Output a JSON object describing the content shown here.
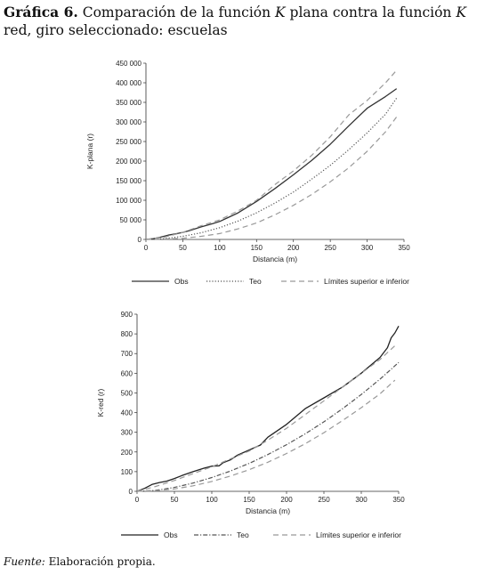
{
  "header": {
    "label": "Gráfica 6.",
    "text_a": " Comparación de la función ",
    "k1": "K",
    "text_b": " plana contra la función ",
    "k2": "K",
    "text_c": " red, giro seleccionado: escuelas"
  },
  "source": {
    "label": "Fuente:",
    "text": " Elaboración propia."
  },
  "chart_data": [
    {
      "type": "line",
      "xlabel": "Distancia (m)",
      "ylabel": "K-plana (r)",
      "xlim": [
        0,
        350
      ],
      "ylim": [
        0,
        450000
      ],
      "xticks": [
        0,
        50,
        100,
        150,
        200,
        250,
        300,
        350
      ],
      "yticks": [
        0,
        50000,
        100000,
        150000,
        200000,
        250000,
        300000,
        350000,
        400000,
        450000
      ],
      "ytick_labels": [
        "0",
        "50 000",
        "100 000",
        "150 000",
        "200 000",
        "250 000",
        "300 000",
        "350 000",
        "400 000",
        "450 000"
      ],
      "legend": [
        "Obs",
        "Teo",
        "Límites superior e inferior"
      ],
      "legend_position": "bottom",
      "series": [
        {
          "name": "Obs",
          "style": "solid",
          "color": "#333333",
          "x": [
            0,
            10,
            20,
            30,
            40,
            50,
            60,
            75,
            90,
            100,
            125,
            150,
            175,
            200,
            225,
            250,
            275,
            300,
            325,
            340
          ],
          "values": [
            0,
            2000,
            6000,
            11000,
            14000,
            18000,
            23000,
            32000,
            40000,
            46000,
            68000,
            97000,
            130000,
            165000,
            202000,
            243000,
            290000,
            335000,
            365000,
            385000
          ]
        },
        {
          "name": "Teo",
          "style": "dotted",
          "color": "#555555",
          "x": [
            0,
            25,
            50,
            75,
            100,
            125,
            150,
            175,
            200,
            225,
            250,
            275,
            300,
            325,
            340
          ],
          "values": [
            0,
            2000,
            8000,
            17000,
            30000,
            47000,
            68000,
            93000,
            121000,
            154000,
            189000,
            229000,
            272000,
            320000,
            361000
          ]
        },
        {
          "name": "Límites superior",
          "style": "dashed",
          "color": "#999999",
          "x": [
            0,
            25,
            50,
            75,
            100,
            125,
            150,
            175,
            200,
            225,
            250,
            275,
            300,
            325,
            340
          ],
          "values": [
            0,
            6000,
            18000,
            35000,
            50000,
            73000,
            100000,
            140000,
            175000,
            215000,
            262000,
            318000,
            355000,
            400000,
            432000
          ]
        },
        {
          "name": "Límites inferior",
          "style": "dashed",
          "color": "#999999",
          "x": [
            0,
            25,
            50,
            75,
            100,
            125,
            150,
            175,
            200,
            225,
            250,
            275,
            300,
            325,
            340
          ],
          "values": [
            0,
            1000,
            3000,
            8000,
            15000,
            27000,
            42000,
            63000,
            87000,
            115000,
            147000,
            183000,
            225000,
            275000,
            313000
          ]
        }
      ]
    },
    {
      "type": "line",
      "xlabel": "Distancia (m)",
      "ylabel": "K-red (r)",
      "xlim": [
        0,
        350
      ],
      "ylim": [
        0,
        900
      ],
      "xticks": [
        0,
        50,
        100,
        150,
        200,
        250,
        300,
        350
      ],
      "yticks": [
        0,
        100,
        200,
        300,
        400,
        500,
        600,
        700,
        800,
        900
      ],
      "ytick_labels": [
        "0",
        "100",
        "200",
        "300",
        "400",
        "500",
        "600",
        "700",
        "800",
        "900"
      ],
      "legend": [
        "Obs",
        "Teo",
        "Límites superior e inferior"
      ],
      "legend_position": "bottom",
      "series": [
        {
          "name": "Obs",
          "style": "solid",
          "color": "#222222",
          "x": [
            0,
            10,
            20,
            30,
            40,
            50,
            60,
            75,
            90,
            100,
            110,
            115,
            125,
            135,
            150,
            165,
            175,
            200,
            225,
            250,
            275,
            300,
            325,
            335,
            340,
            345,
            350
          ],
          "values": [
            0,
            15,
            35,
            45,
            52,
            65,
            80,
            100,
            118,
            128,
            130,
            145,
            160,
            185,
            210,
            235,
            275,
            340,
            420,
            475,
            530,
            600,
            680,
            730,
            780,
            805,
            840
          ]
        },
        {
          "name": "Teo",
          "style": "dashdot",
          "color": "#555555",
          "x": [
            0,
            25,
            50,
            75,
            100,
            125,
            150,
            175,
            200,
            225,
            250,
            275,
            300,
            325,
            350
          ],
          "values": [
            0,
            5,
            20,
            42,
            70,
            103,
            142,
            187,
            237,
            292,
            353,
            420,
            492,
            570,
            655
          ]
        },
        {
          "name": "Límites superior",
          "style": "dashed",
          "color": "#999999",
          "x": [
            0,
            25,
            50,
            75,
            100,
            125,
            150,
            175,
            200,
            225,
            250,
            275,
            300,
            325,
            345
          ],
          "values": [
            0,
            25,
            55,
            90,
            125,
            165,
            205,
            260,
            320,
            390,
            460,
            530,
            600,
            670,
            740
          ]
        },
        {
          "name": "Límites inferior",
          "style": "dashed",
          "color": "#999999",
          "x": [
            0,
            25,
            50,
            75,
            100,
            125,
            150,
            175,
            200,
            225,
            250,
            275,
            300,
            325,
            345
          ],
          "values": [
            0,
            3,
            12,
            28,
            50,
            78,
            110,
            148,
            192,
            242,
            298,
            360,
            425,
            495,
            565
          ]
        }
      ]
    }
  ]
}
